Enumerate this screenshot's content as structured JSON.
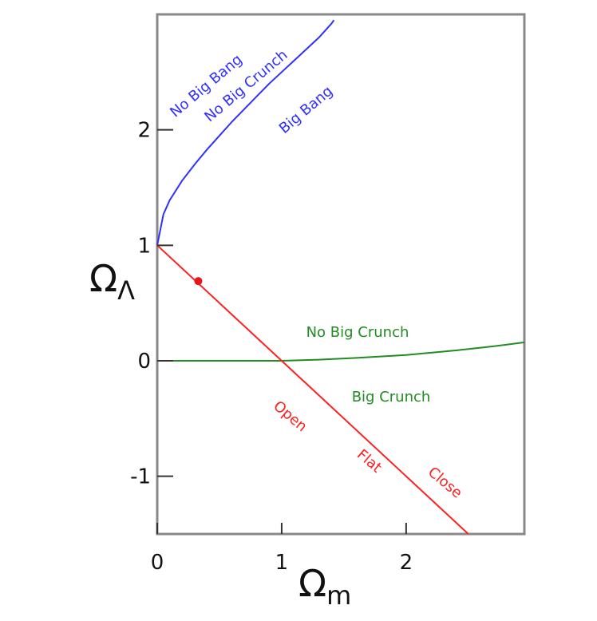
{
  "chart_data": {
    "type": "line",
    "xlabel": "Ω",
    "xlabel_sub": "m",
    "ylabel": "Ω",
    "ylabel_sub": "Λ",
    "xlim": [
      0,
      2.95
    ],
    "ylim": [
      -1.5,
      3.0
    ],
    "x_ticks": [
      0,
      1,
      2
    ],
    "x_tick_labels": [
      "0",
      "1",
      "2"
    ],
    "y_ticks": [
      -1,
      0,
      1,
      2
    ],
    "y_tick_labels": [
      "-1",
      "0",
      "1",
      "2"
    ],
    "grid": false,
    "series": [
      {
        "color": "#3030ff",
        "points": [
          [
            0,
            1.0
          ],
          [
            0.05,
            1.27
          ],
          [
            0.1,
            1.39
          ],
          [
            0.2,
            1.56
          ],
          [
            0.3,
            1.7
          ],
          [
            0.4,
            1.83
          ],
          [
            0.5,
            1.95
          ],
          [
            0.6,
            2.07
          ],
          [
            0.7,
            2.18
          ],
          [
            0.8,
            2.29
          ],
          [
            0.9,
            2.4
          ],
          [
            1.0,
            2.5
          ],
          [
            1.1,
            2.6
          ],
          [
            1.2,
            2.7
          ],
          [
            1.3,
            2.8
          ],
          [
            1.4,
            2.92
          ],
          [
            1.42,
            2.95
          ]
        ]
      },
      {
        "color": "#228B22",
        "points": [
          [
            0,
            0
          ],
          [
            0.5,
            0
          ],
          [
            1.0,
            0
          ],
          [
            1.3,
            0.01
          ],
          [
            1.6,
            0.025
          ],
          [
            2.0,
            0.05
          ],
          [
            2.4,
            0.09
          ],
          [
            2.7,
            0.125
          ],
          [
            2.95,
            0.16
          ]
        ]
      },
      {
        "color": "#ff2020",
        "points": [
          [
            0,
            1.0
          ],
          [
            2.5,
            -1.5
          ]
        ]
      }
    ],
    "marker": {
      "x": 0.33,
      "y": 0.69,
      "color": "#e8161b"
    },
    "annotations": [
      {
        "text": "No Big Bang",
        "color": "#3030ff"
      },
      {
        "text": "No Big Crunch",
        "color": "#3030ff"
      },
      {
        "text": "Big Bang",
        "color": "#3030ff"
      },
      {
        "text": "No Big Crunch",
        "color": "#228B22"
      },
      {
        "text": "Big Crunch",
        "color": "#228B22"
      },
      {
        "text": "Open",
        "color": "#ff2020"
      },
      {
        "text": "Flat",
        "color": "#ff2020"
      },
      {
        "text": "Close",
        "color": "#ff2020"
      }
    ]
  }
}
